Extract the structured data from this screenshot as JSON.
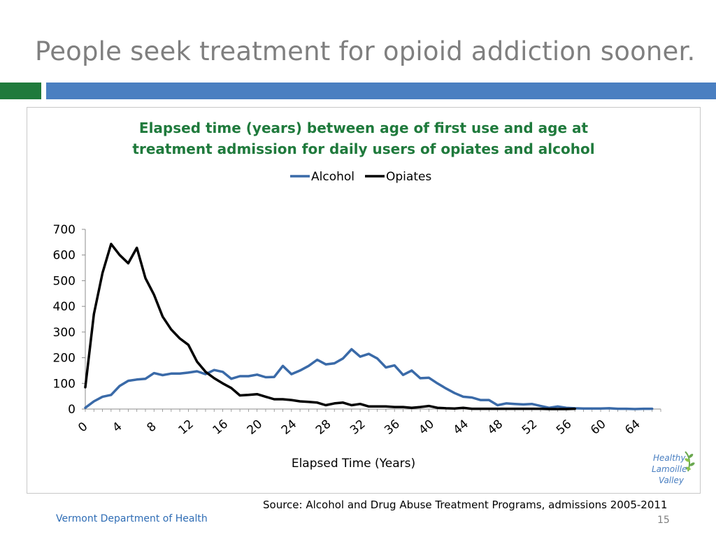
{
  "slide": {
    "title": "People seek treatment for opioid addiction sooner.",
    "source": "Source: Alcohol and Drug Abuse Treatment Programs, admissions 2005-2011",
    "footer": "Vermont Department of Health",
    "page_number": "15",
    "logo_lines": [
      "Healthy",
      "Lamoille",
      "Valley"
    ]
  },
  "colors": {
    "title": "#7f7f7f",
    "accent_green": "#1f7a3c",
    "accent_blue": "#4a7fc1",
    "alcohol": "#3a6aa8",
    "opiates": "#000000"
  },
  "chart_data": {
    "type": "line",
    "title_lines": [
      "Elapsed time (years) between age of first use and age at",
      "treatment admission for daily users of opiates and alcohol"
    ],
    "xlabel": "Elapsed Time (Years)",
    "ylabel": "",
    "xlim": [
      0,
      67
    ],
    "ylim": [
      0,
      700
    ],
    "yticks": [
      0,
      100,
      200,
      300,
      400,
      500,
      600,
      700
    ],
    "xticks": [
      0,
      4,
      8,
      12,
      16,
      20,
      24,
      28,
      32,
      36,
      40,
      44,
      48,
      52,
      56,
      60,
      64
    ],
    "legend_position": "top-center",
    "grid": false,
    "series": [
      {
        "name": "Alcohol",
        "color": "#3a6aa8",
        "x": [
          0,
          1,
          2,
          3,
          4,
          5,
          6,
          7,
          8,
          9,
          10,
          11,
          12,
          13,
          14,
          15,
          16,
          17,
          18,
          19,
          20,
          21,
          22,
          23,
          24,
          25,
          26,
          27,
          28,
          29,
          30,
          31,
          32,
          33,
          34,
          35,
          36,
          37,
          38,
          39,
          40,
          41,
          42,
          43,
          44,
          45,
          46,
          47,
          48,
          49,
          50,
          51,
          52,
          53,
          54,
          55,
          56,
          57,
          58,
          59,
          60,
          61,
          62,
          63,
          64,
          65,
          66
        ],
        "values": [
          5,
          30,
          48,
          55,
          90,
          110,
          115,
          118,
          140,
          132,
          138,
          138,
          142,
          147,
          136,
          152,
          145,
          118,
          128,
          128,
          134,
          124,
          125,
          168,
          136,
          150,
          168,
          192,
          174,
          178,
          197,
          233,
          204,
          215,
          197,
          162,
          170,
          133,
          150,
          120,
          122,
          100,
          80,
          62,
          48,
          45,
          35,
          35,
          15,
          22,
          20,
          18,
          20,
          12,
          5,
          10,
          5,
          3,
          2,
          2,
          2,
          3,
          1,
          1,
          0,
          1,
          1
        ]
      },
      {
        "name": "Opiates",
        "color": "#000000",
        "x": [
          0,
          1,
          2,
          3,
          4,
          5,
          6,
          7,
          8,
          9,
          10,
          11,
          12,
          13,
          14,
          15,
          16,
          17,
          18,
          19,
          20,
          21,
          22,
          23,
          24,
          25,
          26,
          27,
          28,
          29,
          30,
          31,
          32,
          33,
          34,
          35,
          36,
          37,
          38,
          39,
          40,
          41,
          42,
          43,
          44,
          45,
          46,
          47,
          48,
          49,
          50,
          51,
          52,
          53,
          54,
          55,
          56,
          57
        ],
        "values": [
          85,
          370,
          530,
          643,
          600,
          568,
          628,
          510,
          445,
          360,
          310,
          275,
          250,
          185,
          145,
          120,
          100,
          82,
          53,
          55,
          58,
          48,
          38,
          38,
          35,
          30,
          28,
          25,
          15,
          22,
          25,
          15,
          20,
          10,
          10,
          10,
          8,
          8,
          5,
          8,
          12,
          5,
          3,
          2,
          5,
          1,
          1,
          1,
          1,
          1,
          1,
          1,
          1,
          1,
          0,
          0,
          0,
          1
        ]
      }
    ]
  }
}
